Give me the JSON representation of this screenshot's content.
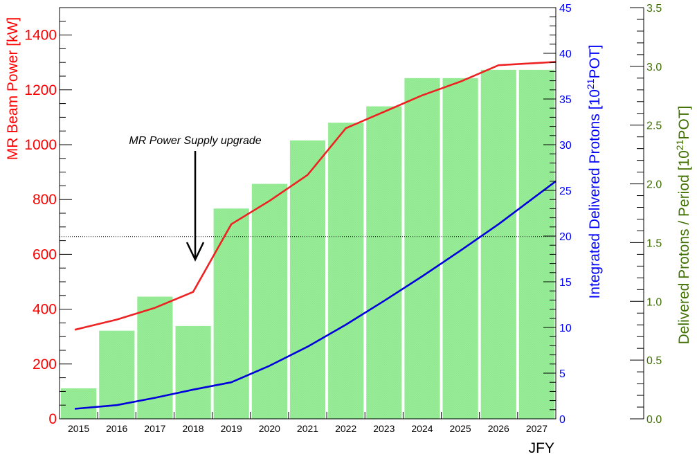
{
  "chart_data": {
    "type": "bar",
    "xlabel": "JFY",
    "categories": [
      "2015",
      "2016",
      "2017",
      "2018",
      "2019",
      "2020",
      "2021",
      "2022",
      "2023",
      "2024",
      "2025",
      "2026",
      "2027"
    ],
    "bar_series": {
      "name": "Delivered Protons / Period",
      "axis": "right-outer",
      "values": [
        0.26,
        0.75,
        1.04,
        0.79,
        1.79,
        2.0,
        2.37,
        2.52,
        2.66,
        2.9,
        2.9,
        2.97,
        2.97
      ]
    },
    "line_series": [
      {
        "name": "MR Beam Power",
        "axis": "left",
        "values": [
          325,
          362,
          405,
          463,
          710,
          795,
          890,
          1060,
          1120,
          1180,
          1230,
          1290,
          1302
        ]
      },
      {
        "name": "Integrated Delivered Protons",
        "axis": "right-inner",
        "values": [
          1.1,
          1.5,
          2.3,
          3.2,
          4.0,
          5.8,
          7.9,
          10.3,
          12.9,
          15.6,
          18.4,
          21.3,
          26.0
        ]
      }
    ],
    "reference_line": {
      "axis": "left",
      "value": 665,
      "style": "dotted"
    },
    "axes": {
      "left": {
        "title": "MR Beam Power [kW]",
        "range": [
          0,
          1500
        ],
        "ticks": [
          "0",
          "200",
          "400",
          "600",
          "800",
          "1000",
          "1200",
          "1400"
        ],
        "color": "#ff0000"
      },
      "right_inner": {
        "title_main": "Integrated Delivered Protons [10",
        "title_sup": "21",
        "title_end": "POT]",
        "range": [
          0,
          45
        ],
        "ticks": [
          "0",
          "5",
          "10",
          "15",
          "20",
          "25",
          "30",
          "35",
          "40",
          "45"
        ],
        "color": "#0000ff"
      },
      "right_outer": {
        "title_main": "Delivered Protons / Period [10",
        "title_sup": "21",
        "title_end": "POT]",
        "range": [
          0,
          3.5
        ],
        "ticks": [
          "0.0",
          "0.5",
          "1.0",
          "1.5",
          "2.0",
          "2.5",
          "3.0",
          "3.5"
        ],
        "color": "#3f6f00"
      }
    },
    "annotation": {
      "text": "MR Power Supply upgrade",
      "points_to": "2018"
    },
    "colors": {
      "bar": "#90ee90",
      "power_line": "#ee2222",
      "protons_line": "#0000dd",
      "frame": "#000000"
    }
  }
}
